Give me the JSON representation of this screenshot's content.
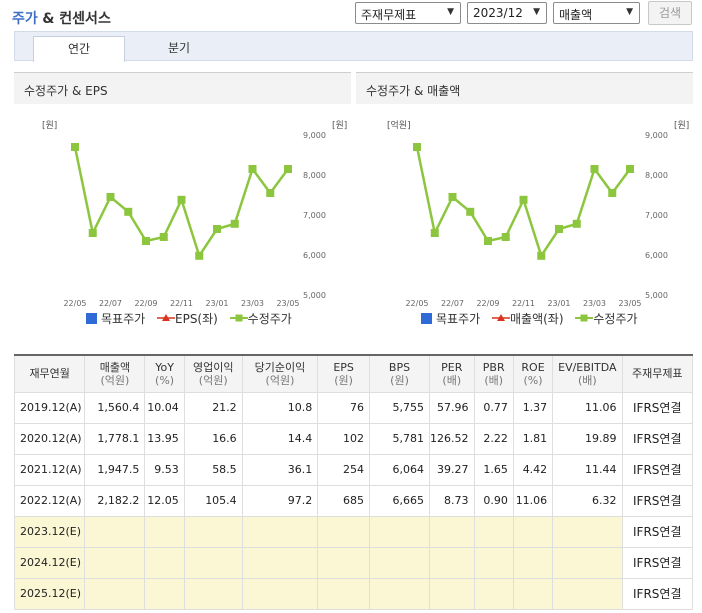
{
  "header": {
    "title_part1": "주가",
    "title_part2": "& 컨센서스",
    "select_basis": "주재무제표",
    "select_period": "2023/12",
    "select_item": "매출액",
    "search_label": "검색"
  },
  "tabs": [
    {
      "label": "연간",
      "active": true
    },
    {
      "label": "분기",
      "active": false
    }
  ],
  "chart_left": {
    "panel_title": "수정주가 & EPS",
    "left_unit": "[원]",
    "right_unit": "[원]",
    "legend": [
      "목표주가",
      "EPS(좌)",
      "수정주가"
    ]
  },
  "chart_right": {
    "panel_title": "수정주가 & 매출액",
    "left_unit": "[억원]",
    "right_unit": "[원]",
    "legend": [
      "목표주가",
      "매출액(좌)",
      "수정주가"
    ]
  },
  "chart_data": [
    {
      "type": "line",
      "title": "수정주가 & EPS",
      "x": [
        "22/05",
        "22/06",
        "22/07",
        "22/08",
        "22/09",
        "22/10",
        "22/11",
        "22/12",
        "23/01",
        "23/02",
        "23/03",
        "23/04",
        "23/05"
      ],
      "x_tick_labels": [
        "22/05",
        "22/07",
        "22/09",
        "22/11",
        "23/01",
        "23/03",
        "23/05"
      ],
      "y_right_ticks": [
        "9,000",
        "8,000",
        "7,000",
        "6,000",
        "5,000"
      ],
      "y_right_range": [
        5000,
        9000
      ],
      "series": [
        {
          "name": "수정주가",
          "color": "#8cc63e",
          "values": [
            8700,
            6550,
            7450,
            7080,
            6350,
            6450,
            7380,
            5980,
            6650,
            6780,
            8150,
            7550,
            8150
          ]
        }
      ],
      "legend_position": "bottom"
    },
    {
      "type": "line",
      "title": "수정주가 & 매출액",
      "x": [
        "22/05",
        "22/06",
        "22/07",
        "22/08",
        "22/09",
        "22/10",
        "22/11",
        "22/12",
        "23/01",
        "23/02",
        "23/03",
        "23/04",
        "23/05"
      ],
      "x_tick_labels": [
        "22/05",
        "22/07",
        "22/09",
        "22/11",
        "23/01",
        "23/03",
        "23/05"
      ],
      "y_right_ticks": [
        "9,000",
        "8,000",
        "7,000",
        "6,000",
        "5,000"
      ],
      "y_right_range": [
        5000,
        9000
      ],
      "series": [
        {
          "name": "수정주가",
          "color": "#8cc63e",
          "values": [
            8700,
            6550,
            7450,
            7080,
            6350,
            6450,
            7380,
            5980,
            6650,
            6780,
            8150,
            7550,
            8150
          ]
        }
      ],
      "legend_position": "bottom"
    }
  ],
  "table": {
    "headers": [
      {
        "name": "재무연월",
        "unit": ""
      },
      {
        "name": "매출액",
        "unit": "(억원)"
      },
      {
        "name": "YoY",
        "unit": "(%)"
      },
      {
        "name": "영업이익",
        "unit": "(억원)"
      },
      {
        "name": "당기순이익",
        "unit": "(억원)"
      },
      {
        "name": "EPS",
        "unit": "(원)"
      },
      {
        "name": "BPS",
        "unit": "(원)"
      },
      {
        "name": "PER",
        "unit": "(배)"
      },
      {
        "name": "PBR",
        "unit": "(배)"
      },
      {
        "name": "ROE",
        "unit": "(%)"
      },
      {
        "name": "EV/EBITDA",
        "unit": "(배)"
      },
      {
        "name": "주재무제표",
        "unit": ""
      }
    ],
    "rows": [
      {
        "period": "2019.12(A)",
        "cells": [
          "1,560.4",
          "10.04",
          "21.2",
          "10.8",
          "76",
          "5,755",
          "57.96",
          "0.77",
          "1.37",
          "11.06"
        ],
        "std": "IFRS연결",
        "estimate": false
      },
      {
        "period": "2020.12(A)",
        "cells": [
          "1,778.1",
          "13.95",
          "16.6",
          "14.4",
          "102",
          "5,781",
          "126.52",
          "2.22",
          "1.81",
          "19.89"
        ],
        "std": "IFRS연결",
        "estimate": false
      },
      {
        "period": "2021.12(A)",
        "cells": [
          "1,947.5",
          "9.53",
          "58.5",
          "36.1",
          "254",
          "6,064",
          "39.27",
          "1.65",
          "4.42",
          "11.44"
        ],
        "std": "IFRS연결",
        "estimate": false
      },
      {
        "period": "2022.12(A)",
        "cells": [
          "2,182.2",
          "12.05",
          "105.4",
          "97.2",
          "685",
          "6,665",
          "8.73",
          "0.90",
          "11.06",
          "6.32"
        ],
        "std": "IFRS연결",
        "estimate": false
      },
      {
        "period": "2023.12(E)",
        "cells": [
          "",
          "",
          "",
          "",
          "",
          "",
          "",
          "",
          "",
          ""
        ],
        "std": "IFRS연결",
        "estimate": true
      },
      {
        "period": "2024.12(E)",
        "cells": [
          "",
          "",
          "",
          "",
          "",
          "",
          "",
          "",
          "",
          ""
        ],
        "std": "IFRS연결",
        "estimate": true
      },
      {
        "period": "2025.12(E)",
        "cells": [
          "",
          "",
          "",
          "",
          "",
          "",
          "",
          "",
          "",
          ""
        ],
        "std": "IFRS연결",
        "estimate": true
      }
    ]
  },
  "colors": {
    "accent_blue": "#3d6fc6",
    "price_line": "#8cc63e",
    "target_square": "#2f6bd6",
    "eps_marker": "#d9341f",
    "estimate_row_bg": "#fbf6d3"
  }
}
